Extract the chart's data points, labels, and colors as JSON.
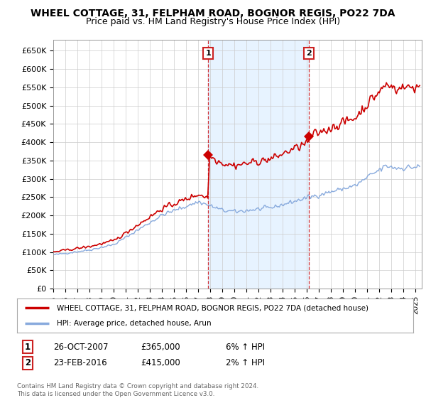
{
  "title": "WHEEL COTTAGE, 31, FELPHAM ROAD, BOGNOR REGIS, PO22 7DA",
  "subtitle": "Price paid vs. HM Land Registry's House Price Index (HPI)",
  "ylim": [
    0,
    680000
  ],
  "yticks": [
    0,
    50000,
    100000,
    150000,
    200000,
    250000,
    300000,
    350000,
    400000,
    450000,
    500000,
    550000,
    600000,
    650000
  ],
  "ytick_labels": [
    "£0",
    "£50K",
    "£100K",
    "£150K",
    "£200K",
    "£250K",
    "£300K",
    "£350K",
    "£400K",
    "£450K",
    "£500K",
    "£550K",
    "£600K",
    "£650K"
  ],
  "xlim_start": 1995.0,
  "xlim_end": 2025.5,
  "line1_color": "#cc0000",
  "line2_color": "#88aadd",
  "shade_color": "#ddeeff",
  "line1_label": "WHEEL COTTAGE, 31, FELPHAM ROAD, BOGNOR REGIS, PO22 7DA (detached house)",
  "line2_label": "HPI: Average price, detached house, Arun",
  "marker1_date": 2007.82,
  "marker1_value": 365000,
  "marker1_num": "1",
  "marker2_date": 2016.15,
  "marker2_value": 415000,
  "marker2_num": "2",
  "footer_line1": "Contains HM Land Registry data © Crown copyright and database right 2024.",
  "footer_line2": "This data is licensed under the Open Government Licence v3.0.",
  "table_row1": [
    "1",
    "26-OCT-2007",
    "£365,000",
    "6% ↑ HPI"
  ],
  "table_row2": [
    "2",
    "23-FEB-2016",
    "£415,000",
    "2% ↑ HPI"
  ],
  "background_color": "#ffffff",
  "grid_color": "#cccccc"
}
